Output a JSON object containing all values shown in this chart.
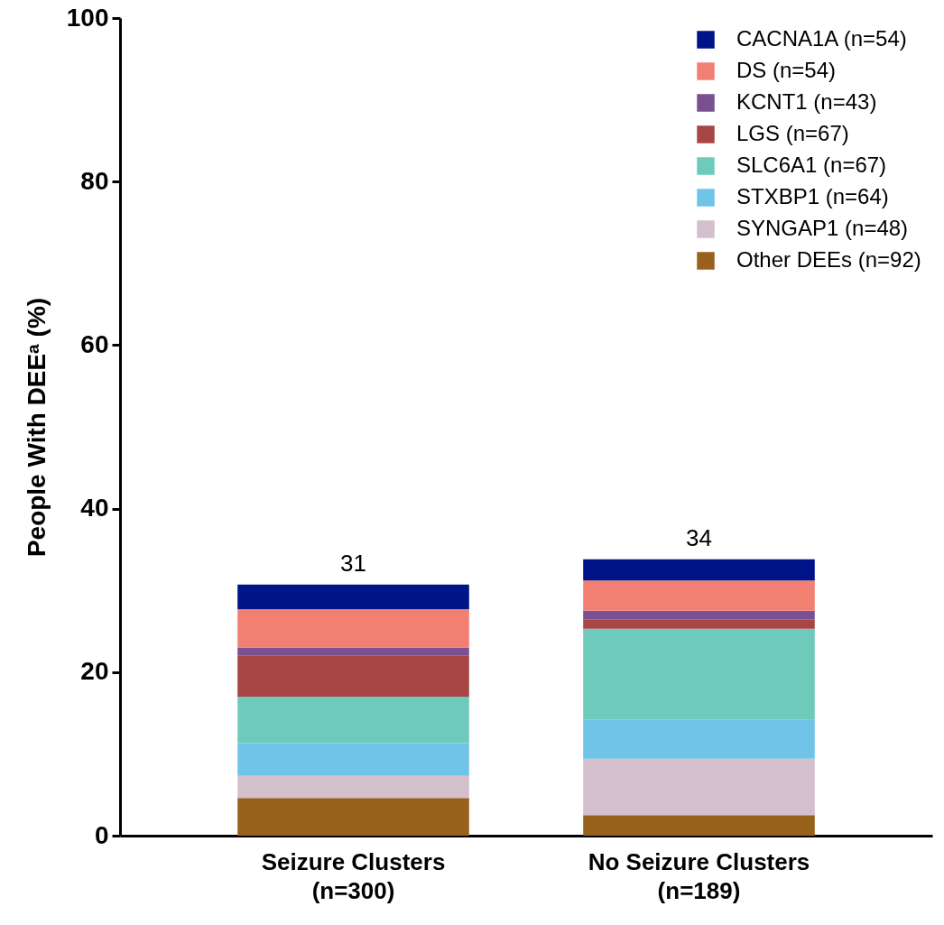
{
  "chart_data": {
    "type": "bar",
    "stacked": true,
    "ylabel": "People With DEEᵃ (%)",
    "categories": [
      "Seizure Clusters\n(n=300)",
      "No Seizure Clusters\n(n=189)"
    ],
    "series": [
      {
        "name": "Other DEEs (n=92)",
        "color": "#99621c",
        "values": [
          4.6,
          2.5
        ]
      },
      {
        "name": "SYNGAP1 (n=48)",
        "color": "#d3c0cc",
        "values": [
          2.7,
          6.9
        ]
      },
      {
        "name": "STXBP1 (n=64)",
        "color": "#70c4e8",
        "values": [
          4.0,
          4.8
        ]
      },
      {
        "name": "SLC6A1 (n=67)",
        "color": "#6ecbbb",
        "values": [
          5.7,
          11.1
        ]
      },
      {
        "name": "LGS (n=67)",
        "color": "#a84545",
        "values": [
          5.0,
          1.1
        ]
      },
      {
        "name": "KCNT1 (n=43)",
        "color": "#7a5090",
        "values": [
          1.0,
          1.1
        ]
      },
      {
        "name": "DS (n=54)",
        "color": "#f28072",
        "values": [
          4.7,
          3.7
        ]
      },
      {
        "name": "CACNA1A (n=54)",
        "color": "#001489",
        "values": [
          3.0,
          2.6
        ]
      }
    ],
    "totals": [
      "31",
      "34"
    ],
    "ylim": [
      0,
      100
    ],
    "yticks": [
      0,
      20,
      40,
      60,
      80,
      100
    ],
    "grid": false,
    "legend": "top right"
  }
}
